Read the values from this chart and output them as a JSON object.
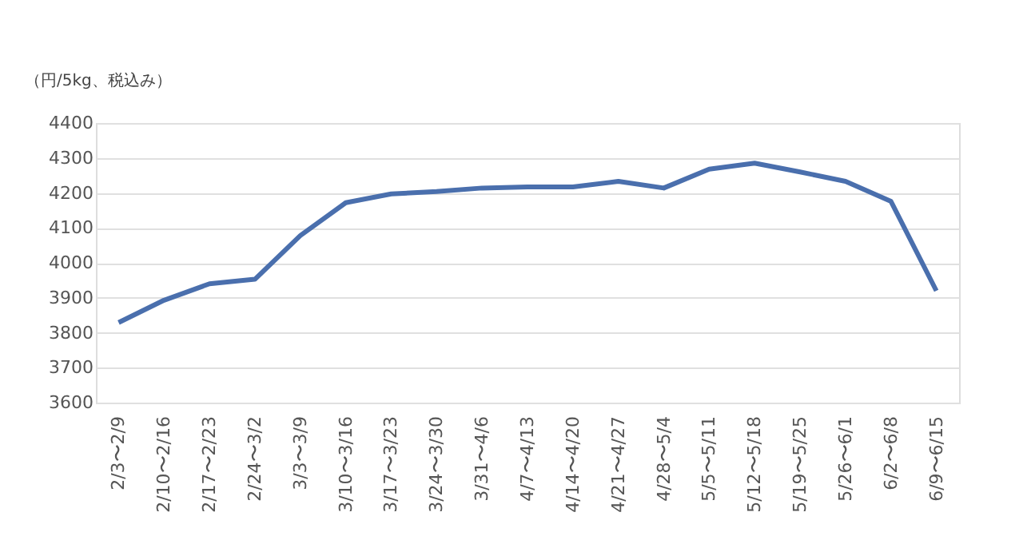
{
  "chart_data": {
    "type": "line",
    "ylabel": "（円/5kg、税込み）",
    "categories": [
      "2/3〜2/9",
      "2/10〜2/16",
      "2/17〜2/23",
      "2/24〜3/2",
      "3/3〜3/9",
      "3/10〜3/16",
      "3/17〜3/23",
      "3/24〜3/30",
      "3/31〜4/6",
      "4/7〜4/13",
      "4/14〜4/20",
      "4/21〜4/27",
      "4/28〜5/4",
      "5/5〜5/11",
      "5/12〜5/18",
      "5/19〜5/25",
      "5/26〜6/1",
      "6/2〜6/8",
      "6/9〜6/15"
    ],
    "series": [
      {
        "color": "#4a6fad",
        "values": [
          3829,
          3893,
          3940,
          3953,
          4078,
          4172,
          4197,
          4204,
          4214,
          4217,
          4217,
          4233,
          4214,
          4268,
          4285,
          4260,
          4233,
          4176,
          3920
        ]
      }
    ],
    "ylim": [
      3600,
      4400
    ],
    "yticks": [
      3600,
      3700,
      3800,
      3900,
      4000,
      4100,
      4200,
      4300,
      4400
    ],
    "grid": "y",
    "marker": "none",
    "line_style": "solid"
  }
}
